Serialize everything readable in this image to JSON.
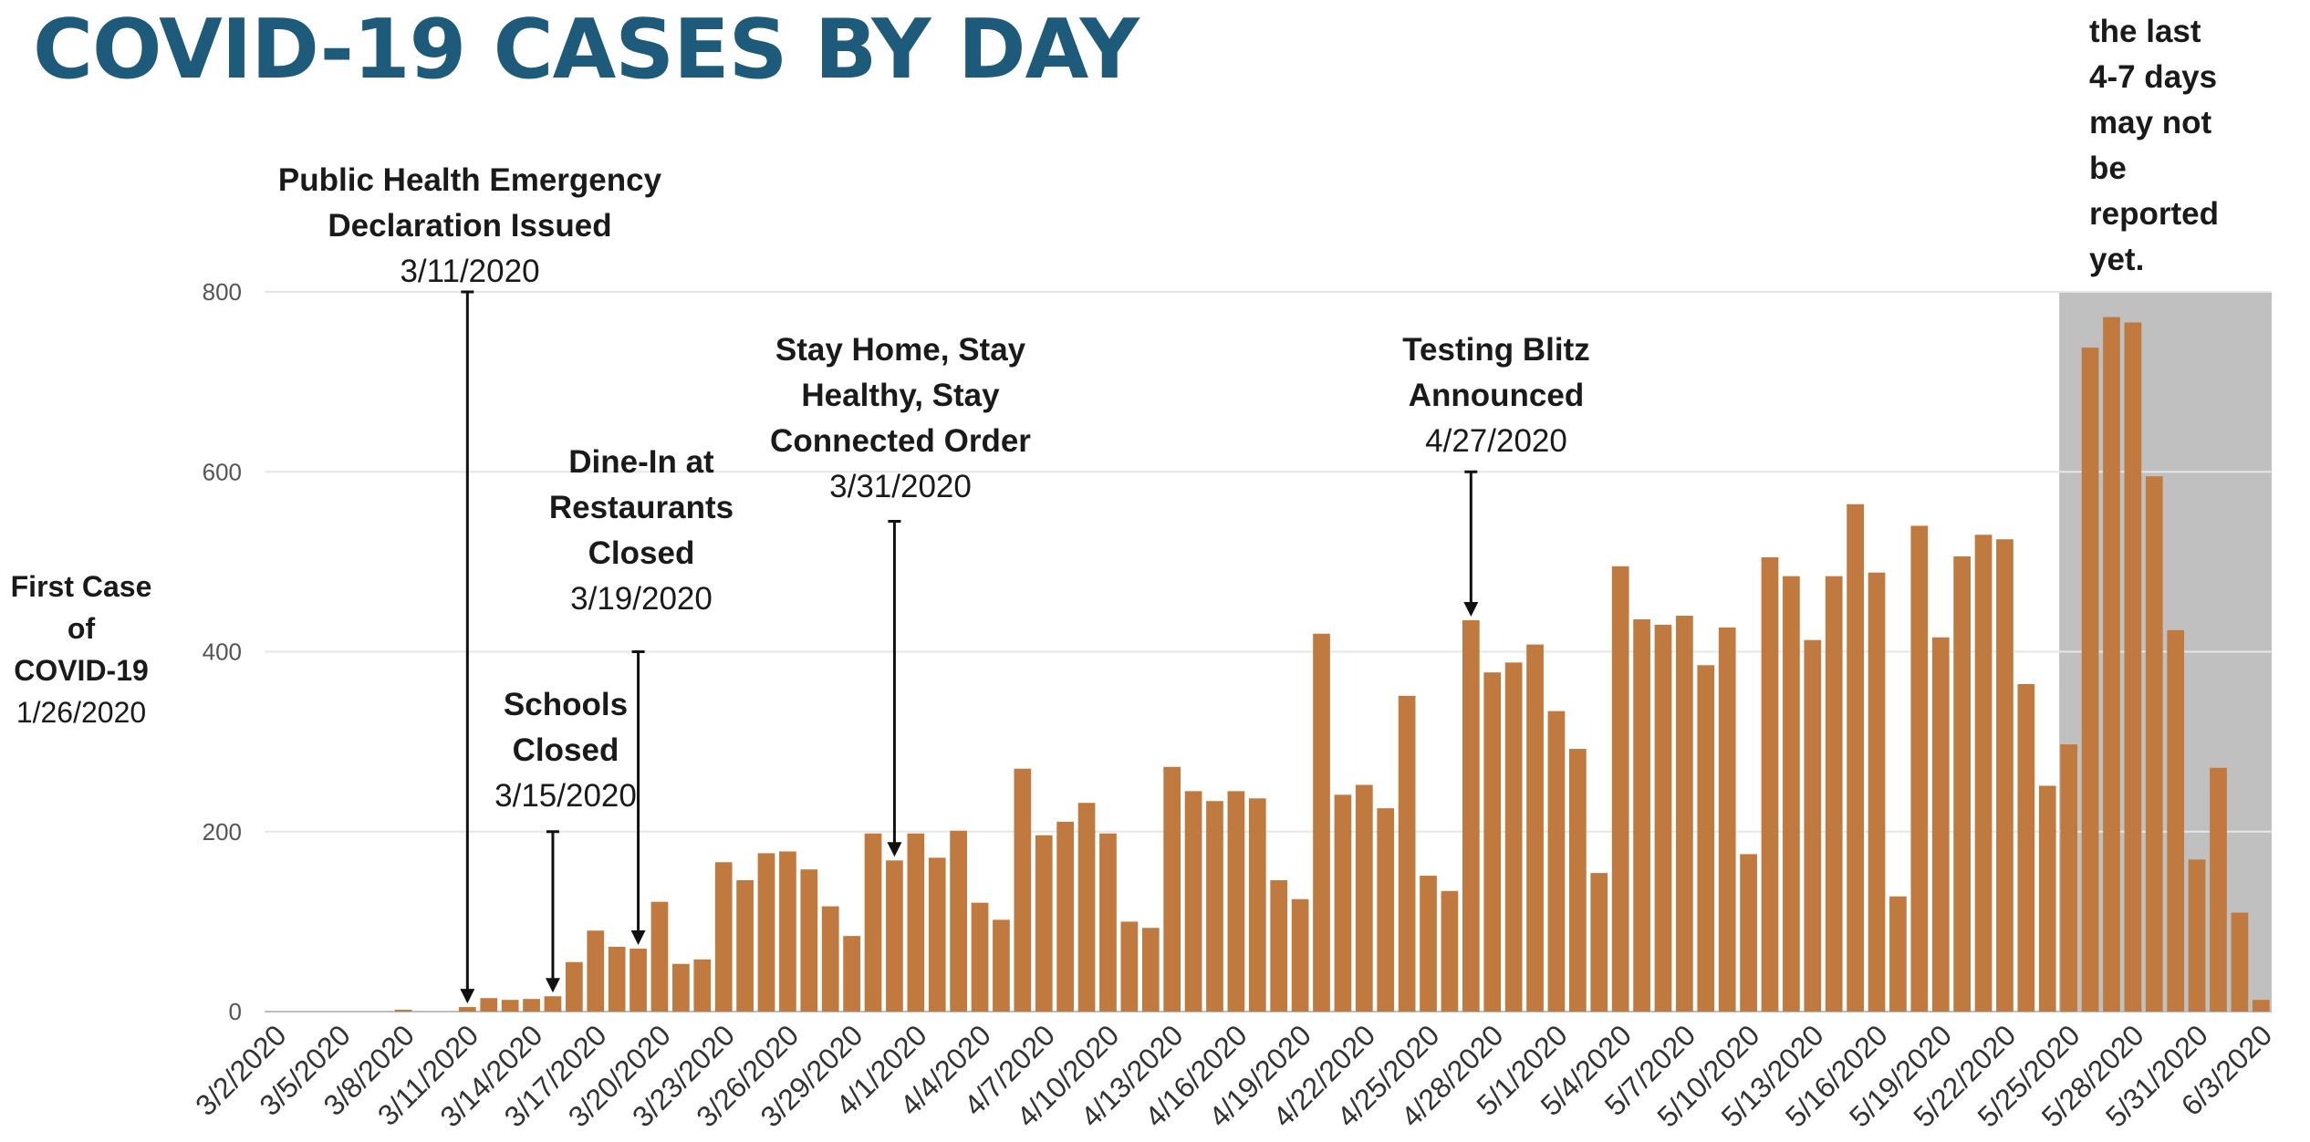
{
  "chart_data": {
    "type": "bar",
    "title": "COVID-19 CASES BY DAY",
    "ylim": [
      0,
      800
    ],
    "yticks": [
      0,
      200,
      400,
      600,
      800
    ],
    "bar_color": "#c07a40",
    "grid": true,
    "shaded_region": {
      "start_index": 84,
      "color": "#c0c0c0",
      "note": "the last\n4-7 days\nmay not\nbe\nreported\nyet."
    },
    "categories": [
      "3/2/2020",
      "3/3/2020",
      "3/4/2020",
      "3/5/2020",
      "3/6/2020",
      "3/7/2020",
      "3/8/2020",
      "3/9/2020",
      "3/10/2020",
      "3/11/2020",
      "3/12/2020",
      "3/13/2020",
      "3/14/2020",
      "3/15/2020",
      "3/16/2020",
      "3/17/2020",
      "3/18/2020",
      "3/19/2020",
      "3/20/2020",
      "3/21/2020",
      "3/22/2020",
      "3/23/2020",
      "3/24/2020",
      "3/25/2020",
      "3/26/2020",
      "3/27/2020",
      "3/28/2020",
      "3/29/2020",
      "3/30/2020",
      "3/31/2020",
      "4/1/2020",
      "4/2/2020",
      "4/3/2020",
      "4/4/2020",
      "4/5/2020",
      "4/6/2020",
      "4/7/2020",
      "4/8/2020",
      "4/9/2020",
      "4/10/2020",
      "4/11/2020",
      "4/12/2020",
      "4/13/2020",
      "4/14/2020",
      "4/15/2020",
      "4/16/2020",
      "4/17/2020",
      "4/18/2020",
      "4/19/2020",
      "4/20/2020",
      "4/21/2020",
      "4/22/2020",
      "4/23/2020",
      "4/24/2020",
      "4/25/2020",
      "4/26/2020",
      "4/27/2020",
      "4/28/2020",
      "4/29/2020",
      "4/30/2020",
      "5/1/2020",
      "5/2/2020",
      "5/3/2020",
      "5/4/2020",
      "5/5/2020",
      "5/6/2020",
      "5/7/2020",
      "5/8/2020",
      "5/9/2020",
      "5/10/2020",
      "5/11/2020",
      "5/12/2020",
      "5/13/2020",
      "5/14/2020",
      "5/15/2020",
      "5/16/2020",
      "5/17/2020",
      "5/18/2020",
      "5/19/2020",
      "5/20/2020",
      "5/21/2020",
      "5/22/2020",
      "5/23/2020",
      "5/24/2020",
      "5/25/2020",
      "5/26/2020",
      "5/27/2020",
      "5/28/2020",
      "5/29/2020",
      "5/30/2020",
      "5/31/2020",
      "6/1/2020",
      "6/2/2020",
      "6/3/2020"
    ],
    "xtick_labels": [
      "3/2/2020",
      "3/5/2020",
      "3/8/2020",
      "3/11/2020",
      "3/14/2020",
      "3/17/2020",
      "3/20/2020",
      "3/23/2020",
      "3/26/2020",
      "3/29/2020",
      "4/1/2020",
      "4/4/2020",
      "4/7/2020",
      "4/10/2020",
      "4/13/2020",
      "4/16/2020",
      "4/19/2020",
      "4/22/2020",
      "4/25/2020",
      "4/28/2020",
      "5/1/2020",
      "5/4/2020",
      "5/7/2020",
      "5/10/2020",
      "5/13/2020",
      "5/16/2020",
      "5/19/2020",
      "5/22/2020",
      "5/25/2020",
      "5/28/2020",
      "5/31/2020",
      "6/3/2020"
    ],
    "values": [
      0,
      0,
      0,
      0,
      0,
      0,
      2,
      0,
      0,
      5,
      15,
      13,
      14,
      17,
      55,
      90,
      72,
      70,
      122,
      53,
      58,
      166,
      146,
      176,
      178,
      158,
      117,
      84,
      198,
      168,
      198,
      171,
      201,
      121,
      102,
      270,
      196,
      211,
      232,
      198,
      100,
      93,
      272,
      245,
      234,
      245,
      237,
      146,
      125,
      420,
      241,
      252,
      226,
      351,
      151,
      134,
      435,
      377,
      388,
      408,
      334,
      292,
      154,
      495,
      436,
      430,
      440,
      385,
      427,
      175,
      505,
      484,
      413,
      484,
      564,
      488,
      128,
      540,
      416,
      506,
      530,
      525,
      364,
      251,
      297,
      738,
      772,
      766,
      595,
      424,
      169,
      271,
      110,
      13
    ]
  },
  "left_note": {
    "lines": [
      "First Case",
      "of",
      "COVID-19"
    ],
    "date": "1/26/2020"
  },
  "annotations": [
    {
      "title": "Public Health Emergency\nDeclaration Issued",
      "date": "3/11/2020"
    },
    {
      "title": "Schools\nClosed",
      "date": "3/15/2020"
    },
    {
      "title": "Dine-In at\nRestaurants\nClosed",
      "date": "3/19/2020"
    },
    {
      "title": "Stay Home, Stay\nHealthy,  Stay\nConnected Order",
      "date": "3/31/2020"
    },
    {
      "title": "Testing Blitz\nAnnounced",
      "date": "4/27/2020"
    }
  ]
}
